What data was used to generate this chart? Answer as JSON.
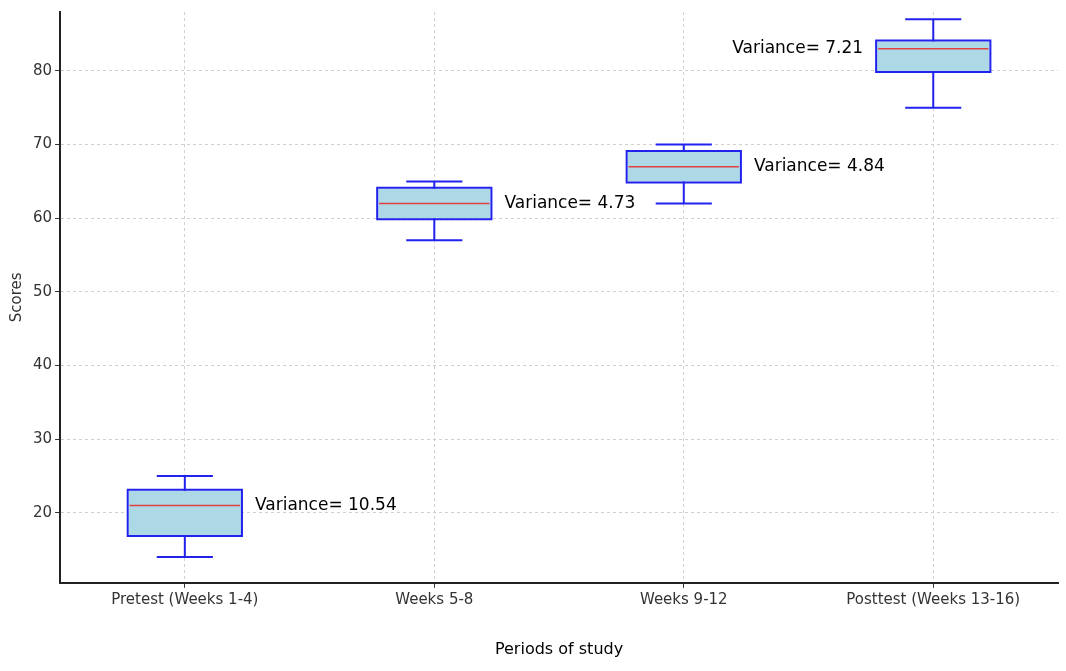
{
  "chart_data": {
    "type": "box",
    "xlabel": "Periods of study",
    "ylabel": "Scores",
    "categories": [
      "Pretest (Weeks 1-4)",
      "Weeks 5-8",
      "Weeks 9-12",
      "Posttest (Weeks 13-16)"
    ],
    "series": [
      {
        "color": "#add8e6",
        "boxes": [
          {
            "low": 14,
            "q1": 17,
            "median": 21,
            "q3": 23,
            "high": 25
          },
          {
            "low": 57,
            "q1": 60,
            "median": 62,
            "q3": 64,
            "high": 65
          },
          {
            "low": 62,
            "q1": 65,
            "median": 67,
            "q3": 69,
            "high": 70
          },
          {
            "low": 75,
            "q1": 80,
            "median": 83,
            "q3": 84,
            "high": 87
          }
        ]
      }
    ],
    "ylim": [
      10.5,
      88
    ],
    "yticks": [
      20,
      30,
      40,
      50,
      60,
      70,
      80
    ],
    "grid": true,
    "annotations": [
      "Variance= 10.54",
      "Variance= 4.73",
      "Variance= 4.84",
      "Variance= 7.21"
    ]
  }
}
